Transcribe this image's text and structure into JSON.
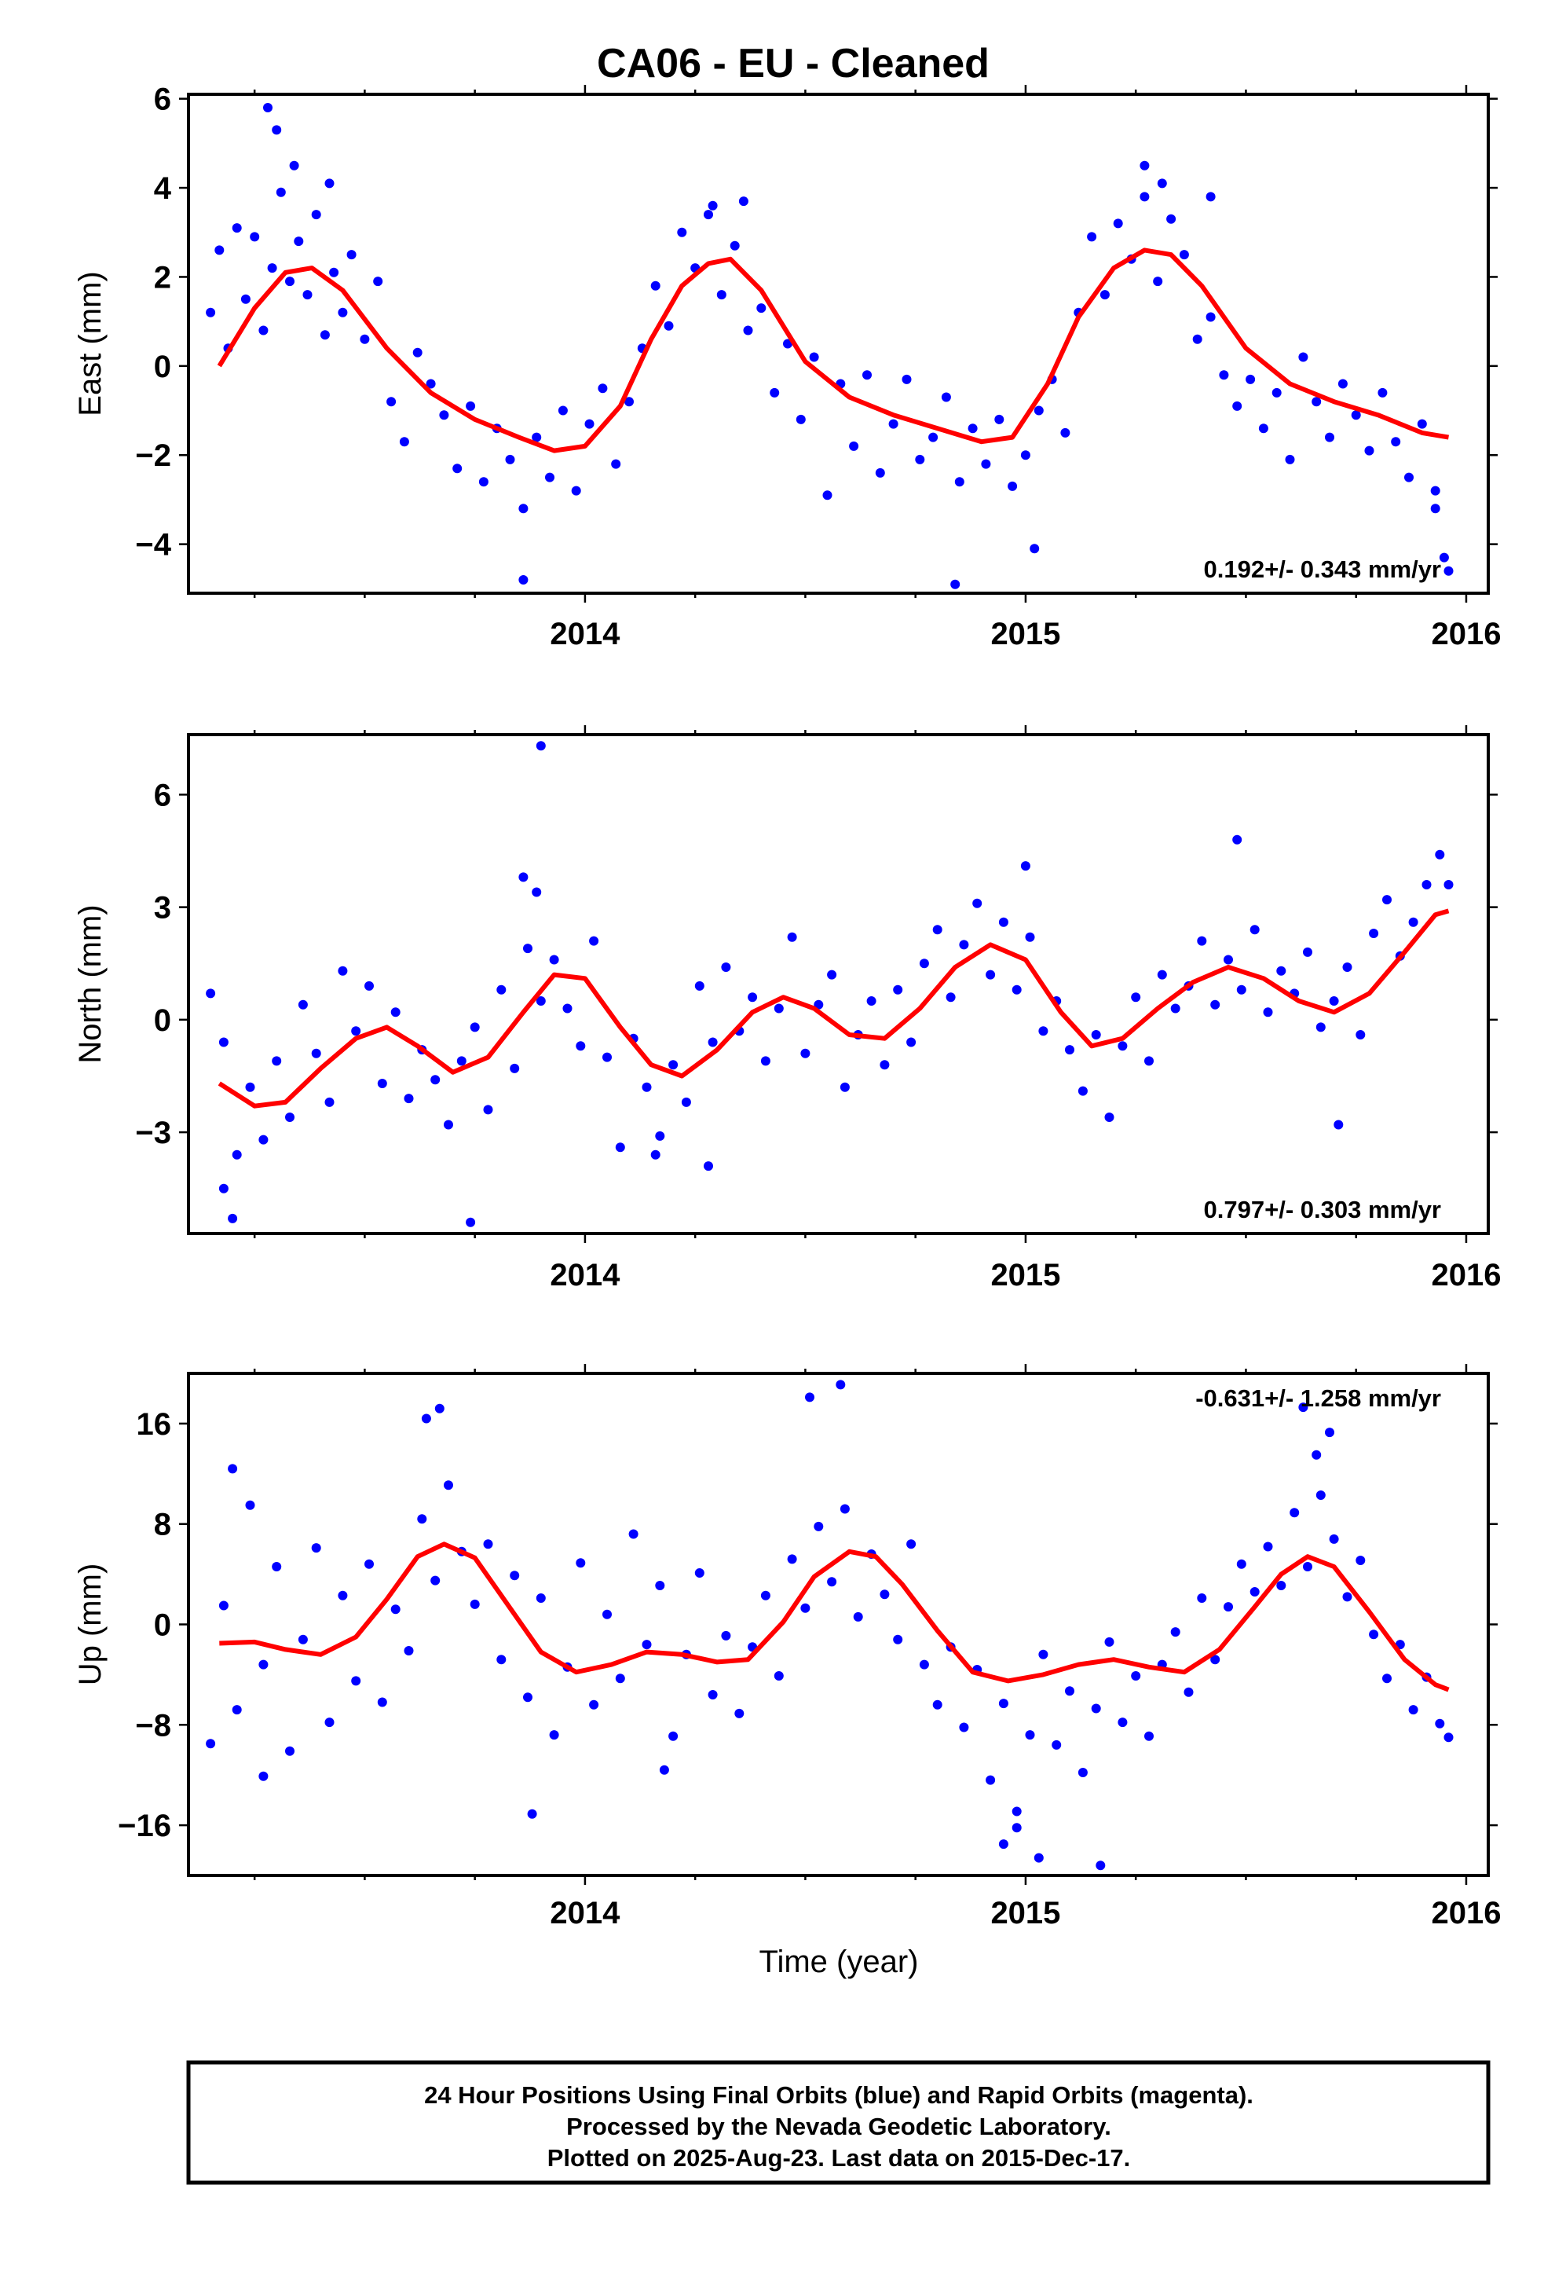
{
  "title": "CA06  - EU - Cleaned",
  "colors": {
    "points": "#0000ff",
    "model": "#ff0000",
    "frame": "#000000"
  },
  "marker_icon": "dot",
  "x_axis": {
    "label": "Time (year)",
    "range": [
      2013.1,
      2016.05
    ],
    "ticks": [
      2014,
      2015,
      2016
    ]
  },
  "footer": {
    "line1": "24 Hour Positions Using Final Orbits (blue) and Rapid Orbits (magenta).",
    "line2": "Processed by the Nevada Geodetic Laboratory.",
    "line3": "Plotted on 2025-Aug-23. Last data on 2015-Dec-17."
  },
  "chart_data": [
    {
      "type": "scatter",
      "component": "east",
      "ylabel": "East (mm)",
      "ylim": [
        -5.1,
        6.1
      ],
      "yticks": [
        -4,
        -2,
        0,
        2,
        4,
        6
      ],
      "xticks": [
        2014,
        2015,
        2016
      ],
      "rate_label": "0.192+/- 0.343 mm/yr",
      "rate_position": "bottom-right",
      "model_curve": {
        "name": "",
        "x": [
          2013.17,
          2013.25,
          2013.32,
          2013.38,
          2013.45,
          2013.55,
          2013.65,
          2013.75,
          2013.85,
          2013.93,
          2014.0,
          2014.08,
          2014.15,
          2014.22,
          2014.28,
          2014.33,
          2014.4,
          2014.5,
          2014.6,
          2014.7,
          2014.8,
          2014.9,
          2014.97,
          2015.05,
          2015.12,
          2015.2,
          2015.27,
          2015.33,
          2015.4,
          2015.5,
          2015.6,
          2015.7,
          2015.8,
          2015.9,
          2015.96
        ],
        "y": [
          0.0,
          1.3,
          2.1,
          2.2,
          1.7,
          0.4,
          -0.6,
          -1.2,
          -1.6,
          -1.9,
          -1.8,
          -0.9,
          0.6,
          1.8,
          2.3,
          2.4,
          1.7,
          0.1,
          -0.7,
          -1.1,
          -1.4,
          -1.7,
          -1.6,
          -0.4,
          1.1,
          2.2,
          2.6,
          2.5,
          1.8,
          0.4,
          -0.4,
          -0.8,
          -1.1,
          -1.5,
          -1.6
        ]
      },
      "points": {
        "x": [
          2013.15,
          2013.17,
          2013.19,
          2013.21,
          2013.23,
          2013.25,
          2013.27,
          2013.29,
          2013.31,
          2013.33,
          2013.35,
          2013.37,
          2013.39,
          2013.41,
          2013.43,
          2013.45,
          2013.47,
          2013.5,
          2013.53,
          2013.56,
          2013.59,
          2013.62,
          2013.65,
          2013.68,
          2013.71,
          2013.74,
          2013.77,
          2013.8,
          2013.83,
          2013.86,
          2013.89,
          2013.92,
          2013.95,
          2013.98,
          2014.01,
          2014.04,
          2014.07,
          2014.1,
          2014.13,
          2014.16,
          2014.19,
          2014.22,
          2014.25,
          2014.28,
          2014.31,
          2014.34,
          2014.37,
          2014.4,
          2014.43,
          2014.46,
          2014.49,
          2014.52,
          2014.55,
          2014.58,
          2014.61,
          2014.64,
          2014.67,
          2014.7,
          2014.73,
          2014.76,
          2014.79,
          2014.82,
          2014.85,
          2014.88,
          2014.91,
          2014.94,
          2014.97,
          2015.0,
          2015.03,
          2015.06,
          2015.09,
          2015.12,
          2015.15,
          2015.18,
          2015.21,
          2015.24,
          2015.27,
          2015.3,
          2015.33,
          2015.36,
          2015.39,
          2015.42,
          2015.45,
          2015.48,
          2015.51,
          2015.54,
          2015.57,
          2015.6,
          2015.63,
          2015.66,
          2015.69,
          2015.72,
          2015.75,
          2015.78,
          2015.81,
          2015.84,
          2015.87,
          2015.9,
          2015.93,
          2015.95,
          2015.96,
          2013.3,
          2013.34,
          2013.28,
          2013.42,
          2014.29,
          2014.36,
          2015.27,
          2015.31,
          2015.42,
          2013.86,
          2014.84,
          2015.02,
          2015.93
        ],
        "y": [
          1.2,
          2.6,
          0.4,
          3.1,
          1.5,
          2.9,
          0.8,
          2.2,
          3.9,
          1.9,
          2.8,
          1.6,
          3.4,
          0.7,
          2.1,
          1.2,
          2.5,
          0.6,
          1.9,
          -0.8,
          -1.7,
          0.3,
          -0.4,
          -1.1,
          -2.3,
          -0.9,
          -2.6,
          -1.4,
          -2.1,
          -3.2,
          -1.6,
          -2.5,
          -1.0,
          -2.8,
          -1.3,
          -0.5,
          -2.2,
          -0.8,
          0.4,
          1.8,
          0.9,
          3.0,
          2.2,
          3.4,
          1.6,
          2.7,
          0.8,
          1.3,
          -0.6,
          0.5,
          -1.2,
          0.2,
          -2.9,
          -0.4,
          -1.8,
          -0.2,
          -2.4,
          -1.3,
          -0.3,
          -2.1,
          -1.6,
          -0.7,
          -2.6,
          -1.4,
          -2.2,
          -1.2,
          -2.7,
          -2.0,
          -1.0,
          -0.3,
          -1.5,
          1.2,
          2.9,
          1.6,
          3.2,
          2.4,
          3.8,
          1.9,
          3.3,
          2.5,
          0.6,
          1.1,
          -0.2,
          -0.9,
          -0.3,
          -1.4,
          -0.6,
          -2.1,
          0.2,
          -0.8,
          -1.6,
          -0.4,
          -1.1,
          -1.9,
          -0.6,
          -1.7,
          -2.5,
          -1.3,
          -2.8,
          -4.3,
          -4.6,
          5.3,
          4.5,
          5.8,
          4.1,
          3.6,
          3.7,
          4.5,
          4.1,
          3.8,
          -4.8,
          -4.9,
          -4.1,
          -3.2
        ]
      }
    },
    {
      "type": "scatter",
      "component": "north",
      "ylabel": "North (mm)",
      "ylim": [
        -5.7,
        7.6
      ],
      "yticks": [
        -3,
        0,
        3,
        6
      ],
      "xticks": [
        2014,
        2015,
        2016
      ],
      "rate_label": "0.797+/- 0.303 mm/yr",
      "rate_position": "bottom-right",
      "model_curve": {
        "name": "",
        "x": [
          2013.17,
          2013.25,
          2013.32,
          2013.4,
          2013.48,
          2013.55,
          2013.62,
          2013.7,
          2013.78,
          2013.86,
          2013.93,
          2014.0,
          2014.08,
          2014.15,
          2014.22,
          2014.3,
          2014.38,
          2014.45,
          2014.52,
          2014.6,
          2014.68,
          2014.76,
          2014.84,
          2014.92,
          2015.0,
          2015.08,
          2015.15,
          2015.22,
          2015.3,
          2015.38,
          2015.46,
          2015.54,
          2015.62,
          2015.7,
          2015.78,
          2015.86,
          2015.93,
          2015.96
        ],
        "y": [
          -1.7,
          -2.3,
          -2.2,
          -1.3,
          -0.5,
          -0.2,
          -0.7,
          -1.4,
          -1.0,
          0.2,
          1.2,
          1.1,
          -0.2,
          -1.2,
          -1.5,
          -0.8,
          0.2,
          0.6,
          0.3,
          -0.4,
          -0.5,
          0.3,
          1.4,
          2.0,
          1.6,
          0.2,
          -0.7,
          -0.5,
          0.3,
          1.0,
          1.4,
          1.1,
          0.5,
          0.2,
          0.7,
          1.8,
          2.8,
          2.9
        ]
      },
      "points": {
        "x": [
          2013.15,
          2013.18,
          2013.21,
          2013.24,
          2013.27,
          2013.3,
          2013.33,
          2013.36,
          2013.39,
          2013.42,
          2013.45,
          2013.48,
          2013.51,
          2013.54,
          2013.57,
          2013.6,
          2013.63,
          2013.66,
          2013.69,
          2013.72,
          2013.75,
          2013.78,
          2013.81,
          2013.84,
          2013.87,
          2013.9,
          2013.93,
          2013.96,
          2013.99,
          2014.02,
          2014.05,
          2014.08,
          2014.11,
          2014.14,
          2014.17,
          2014.2,
          2014.23,
          2014.26,
          2014.29,
          2014.32,
          2014.35,
          2014.38,
          2014.41,
          2014.44,
          2014.47,
          2014.5,
          2014.53,
          2014.56,
          2014.59,
          2014.62,
          2014.65,
          2014.68,
          2014.71,
          2014.74,
          2014.77,
          2014.8,
          2014.83,
          2014.86,
          2014.89,
          2014.92,
          2014.95,
          2014.98,
          2015.01,
          2015.04,
          2015.07,
          2015.1,
          2015.13,
          2015.16,
          2015.19,
          2015.22,
          2015.25,
          2015.28,
          2015.31,
          2015.34,
          2015.37,
          2015.4,
          2015.43,
          2015.46,
          2015.49,
          2015.52,
          2015.55,
          2015.58,
          2015.61,
          2015.64,
          2015.67,
          2015.7,
          2015.73,
          2015.76,
          2015.79,
          2015.82,
          2015.85,
          2015.88,
          2015.91,
          2015.94,
          2015.96,
          2013.9,
          2013.74,
          2013.2,
          2013.18,
          2014.28,
          2015.48,
          2015.71,
          2013.86,
          2015.0,
          2014.16,
          2013.89
        ],
        "y": [
          0.7,
          -0.6,
          -3.6,
          -1.8,
          -3.2,
          -1.1,
          -2.6,
          0.4,
          -0.9,
          -2.2,
          1.3,
          -0.3,
          0.9,
          -1.7,
          0.2,
          -2.1,
          -0.8,
          -1.6,
          -2.8,
          -1.1,
          -0.2,
          -2.4,
          0.8,
          -1.3,
          1.9,
          0.5,
          1.6,
          0.3,
          -0.7,
          2.1,
          -1.0,
          -3.4,
          -0.5,
          -1.8,
          -3.1,
          -1.2,
          -2.2,
          0.9,
          -0.6,
          1.4,
          -0.3,
          0.6,
          -1.1,
          0.3,
          2.2,
          -0.9,
          0.4,
          1.2,
          -1.8,
          -0.4,
          0.5,
          -1.2,
          0.8,
          -0.6,
          1.5,
          2.4,
          0.6,
          2.0,
          3.1,
          1.2,
          2.6,
          0.8,
          2.2,
          -0.3,
          0.5,
          -0.8,
          -1.9,
          -0.4,
          -2.6,
          -0.7,
          0.6,
          -1.1,
          1.2,
          0.3,
          0.9,
          2.1,
          0.4,
          1.6,
          0.8,
          2.4,
          0.2,
          1.3,
          0.7,
          1.8,
          -0.2,
          0.5,
          1.4,
          -0.4,
          2.3,
          3.2,
          1.7,
          2.6,
          3.6,
          4.4,
          3.6,
          7.3,
          -5.4,
          -5.3,
          -4.5,
          -3.9,
          4.8,
          -2.8,
          3.8,
          4.1,
          -3.6,
          3.4
        ]
      }
    },
    {
      "type": "scatter",
      "component": "up",
      "ylabel": "Up (mm)",
      "ylim": [
        -20,
        20
      ],
      "yticks": [
        -16,
        -8,
        0,
        8,
        16
      ],
      "xticks": [
        2014,
        2015,
        2016
      ],
      "rate_label": "-0.631+/- 1.258 mm/yr",
      "rate_position": "top-right",
      "model_curve": {
        "name": "",
        "x": [
          2013.17,
          2013.25,
          2013.32,
          2013.4,
          2013.48,
          2013.55,
          2013.62,
          2013.68,
          2013.75,
          2013.82,
          2013.9,
          2013.98,
          2014.06,
          2014.14,
          2014.22,
          2014.3,
          2014.37,
          2014.45,
          2014.52,
          2014.6,
          2014.66,
          2014.72,
          2014.8,
          2014.88,
          2014.96,
          2015.04,
          2015.12,
          2015.2,
          2015.28,
          2015.36,
          2015.44,
          2015.52,
          2015.58,
          2015.64,
          2015.7,
          2015.78,
          2015.86,
          2015.93,
          2015.96
        ],
        "y": [
          -1.5,
          -1.4,
          -2.0,
          -2.4,
          -1.0,
          2.0,
          5.4,
          6.4,
          5.3,
          1.8,
          -2.2,
          -3.8,
          -3.2,
          -2.2,
          -2.4,
          -3.0,
          -2.8,
          0.2,
          3.8,
          5.8,
          5.4,
          3.2,
          -0.5,
          -3.8,
          -4.5,
          -4.0,
          -3.2,
          -2.8,
          -3.4,
          -3.8,
          -2.0,
          1.4,
          4.0,
          5.4,
          4.6,
          1.0,
          -2.8,
          -4.8,
          -5.2
        ]
      },
      "points": {
        "x": [
          2013.15,
          2013.18,
          2013.21,
          2013.24,
          2013.27,
          2013.3,
          2013.33,
          2013.36,
          2013.39,
          2013.42,
          2013.45,
          2013.48,
          2013.51,
          2013.54,
          2013.57,
          2013.6,
          2013.63,
          2013.66,
          2013.69,
          2013.72,
          2013.75,
          2013.78,
          2013.81,
          2013.84,
          2013.87,
          2013.9,
          2013.93,
          2013.96,
          2013.99,
          2014.02,
          2014.05,
          2014.08,
          2014.11,
          2014.14,
          2014.17,
          2014.2,
          2014.23,
          2014.26,
          2014.29,
          2014.32,
          2014.35,
          2014.38,
          2014.41,
          2014.44,
          2014.47,
          2014.5,
          2014.53,
          2014.56,
          2014.59,
          2014.62,
          2014.65,
          2014.68,
          2014.71,
          2014.74,
          2014.77,
          2014.8,
          2014.83,
          2014.86,
          2014.89,
          2014.92,
          2014.95,
          2014.98,
          2015.01,
          2015.04,
          2015.07,
          2015.1,
          2015.13,
          2015.16,
          2015.19,
          2015.22,
          2015.25,
          2015.28,
          2015.31,
          2015.34,
          2015.37,
          2015.4,
          2015.43,
          2015.46,
          2015.49,
          2015.52,
          2015.55,
          2015.58,
          2015.61,
          2015.64,
          2015.67,
          2015.7,
          2015.73,
          2015.76,
          2015.79,
          2015.82,
          2015.85,
          2015.88,
          2015.91,
          2015.94,
          2015.96,
          2013.64,
          2013.67,
          2014.51,
          2014.58,
          2014.95,
          2014.98,
          2015.03,
          2015.17,
          2015.63,
          2015.66,
          2015.69,
          2013.88,
          2014.18,
          2013.2,
          2013.27
        ],
        "y": [
          -9.5,
          1.5,
          -6.8,
          9.5,
          -3.2,
          4.6,
          -10.1,
          -1.2,
          6.1,
          -7.8,
          2.3,
          -4.5,
          4.8,
          -6.2,
          1.2,
          -2.1,
          8.4,
          3.5,
          11.1,
          5.8,
          1.6,
          6.4,
          -2.8,
          3.9,
          -5.8,
          2.1,
          -8.8,
          -3.4,
          4.9,
          -6.4,
          0.8,
          -4.3,
          7.2,
          -1.6,
          3.1,
          -8.9,
          -2.4,
          4.1,
          -5.6,
          -0.9,
          -7.1,
          -1.8,
          2.3,
          -4.1,
          5.2,
          1.3,
          7.8,
          3.4,
          9.2,
          0.6,
          5.6,
          2.4,
          -1.2,
          6.4,
          -3.2,
          -6.4,
          -1.8,
          -8.2,
          -3.6,
          -12.4,
          -6.3,
          -14.9,
          -8.8,
          -2.4,
          -9.6,
          -5.3,
          -11.8,
          -6.7,
          -1.4,
          -7.8,
          -4.1,
          -8.9,
          -3.2,
          -0.6,
          -5.4,
          2.1,
          -2.8,
          1.4,
          4.8,
          2.6,
          6.2,
          3.1,
          8.9,
          4.6,
          10.3,
          6.8,
          2.2,
          5.1,
          -0.8,
          -4.3,
          -1.6,
          -6.8,
          -4.2,
          -7.9,
          -9.0,
          16.4,
          17.2,
          18.1,
          19.1,
          -17.5,
          -16.2,
          -18.6,
          -19.2,
          17.3,
          13.5,
          15.3,
          -15.1,
          -11.6,
          12.4,
          -12.1
        ]
      }
    }
  ]
}
